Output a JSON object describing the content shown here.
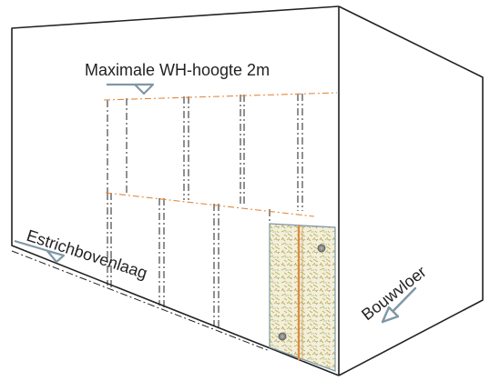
{
  "labels": {
    "max_height": "Maximale WH-hoogte 2m",
    "screed": "Estrichbovenlaag",
    "floor": "Bouwvloer"
  },
  "colors": {
    "outline": "#222222",
    "marker": "#7f97a6",
    "orange_line": "#e0893f",
    "panel_edge": "#7f97a6",
    "panel_fill": "#f3efd9",
    "fiber_green": "#a9b85a",
    "fiber_brown": "#c9a46a"
  },
  "icons": {
    "level_marker": "level-triangle-icon",
    "direction_arrow": "arrow-down-left-icon",
    "fastener": "screw-head-icon"
  }
}
